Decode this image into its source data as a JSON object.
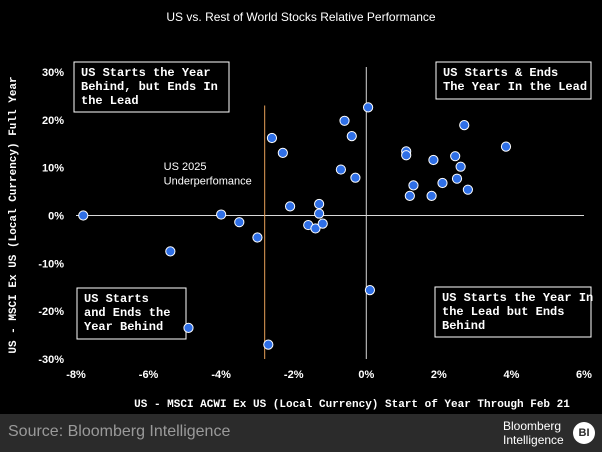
{
  "header": {
    "title": "US vs. Rest of World Stocks Relative Performance"
  },
  "footer": {
    "source": "Source: Bloomberg Intelligence",
    "logo_line1": "Bloomberg",
    "logo_line2": "Intelligence",
    "badge": "BI"
  },
  "chart_data": {
    "type": "scatter",
    "xlabel": "US - MSCI ACWI Ex US (Local Currency) Start of Year Through Feb 21",
    "ylabel": "US - MSCI Ex US (Local Currency) Full Year",
    "xlim": [
      -8,
      6
    ],
    "ylim": [
      -30,
      30
    ],
    "x_ticks": [
      -8,
      -6,
      -4,
      -2,
      0,
      2,
      4,
      6
    ],
    "x_tick_labels": [
      "-8%",
      "-6%",
      "-4%",
      "-2%",
      "0%",
      "2%",
      "4%",
      "6%"
    ],
    "y_ticks": [
      30,
      20,
      10,
      0,
      -10,
      -20,
      -30
    ],
    "y_tick_labels": [
      "30%",
      "20%",
      "10%",
      "0%",
      "-10%",
      "-20%",
      "-30%"
    ],
    "grid": false,
    "zero_lines": true,
    "point_color": "#2f6fe6",
    "reference_line": {
      "x": -2.8,
      "color": "#e8a15a",
      "label": [
        "US 2025",
        "Underperfomance"
      ]
    },
    "quadrant_labels": {
      "top_left": [
        "US Starts the Year",
        "Behind, but Ends In",
        "the Lead"
      ],
      "top_right": [
        "US Starts & Ends",
        "The Year In the Lead"
      ],
      "bottom_left": [
        "US Starts",
        "and Ends the",
        "Year Behind"
      ],
      "bottom_right": [
        "US Starts the Year In",
        "the Lead but Ends",
        "Behind"
      ]
    },
    "points": [
      {
        "x": -7.8,
        "y": 0.0
      },
      {
        "x": -5.4,
        "y": -7.5
      },
      {
        "x": -4.9,
        "y": -23.5
      },
      {
        "x": -4.0,
        "y": 0.2
      },
      {
        "x": -3.5,
        "y": -1.4
      },
      {
        "x": -3.0,
        "y": -4.6
      },
      {
        "x": -2.7,
        "y": -27.0
      },
      {
        "x": -2.6,
        "y": 16.2
      },
      {
        "x": -2.3,
        "y": 13.1
      },
      {
        "x": -2.1,
        "y": 1.9
      },
      {
        "x": -1.6,
        "y": -2.0
      },
      {
        "x": -1.4,
        "y": -2.7
      },
      {
        "x": -1.3,
        "y": 2.4
      },
      {
        "x": -1.3,
        "y": 0.4
      },
      {
        "x": -1.2,
        "y": -1.7
      },
      {
        "x": -0.7,
        "y": 9.6
      },
      {
        "x": -0.6,
        "y": 19.8
      },
      {
        "x": -0.4,
        "y": 16.6
      },
      {
        "x": -0.3,
        "y": 7.9
      },
      {
        "x": 0.05,
        "y": 22.6
      },
      {
        "x": 0.1,
        "y": -15.6
      },
      {
        "x": 1.1,
        "y": 13.4
      },
      {
        "x": 1.1,
        "y": 12.6
      },
      {
        "x": 1.2,
        "y": 4.1
      },
      {
        "x": 1.3,
        "y": 6.3
      },
      {
        "x": 1.8,
        "y": 4.1
      },
      {
        "x": 1.85,
        "y": 11.6
      },
      {
        "x": 2.1,
        "y": 6.8
      },
      {
        "x": 2.45,
        "y": 12.4
      },
      {
        "x": 2.5,
        "y": 7.7
      },
      {
        "x": 2.6,
        "y": 10.2
      },
      {
        "x": 2.7,
        "y": 18.9
      },
      {
        "x": 2.8,
        "y": 5.4
      },
      {
        "x": 3.85,
        "y": 14.4
      }
    ]
  }
}
